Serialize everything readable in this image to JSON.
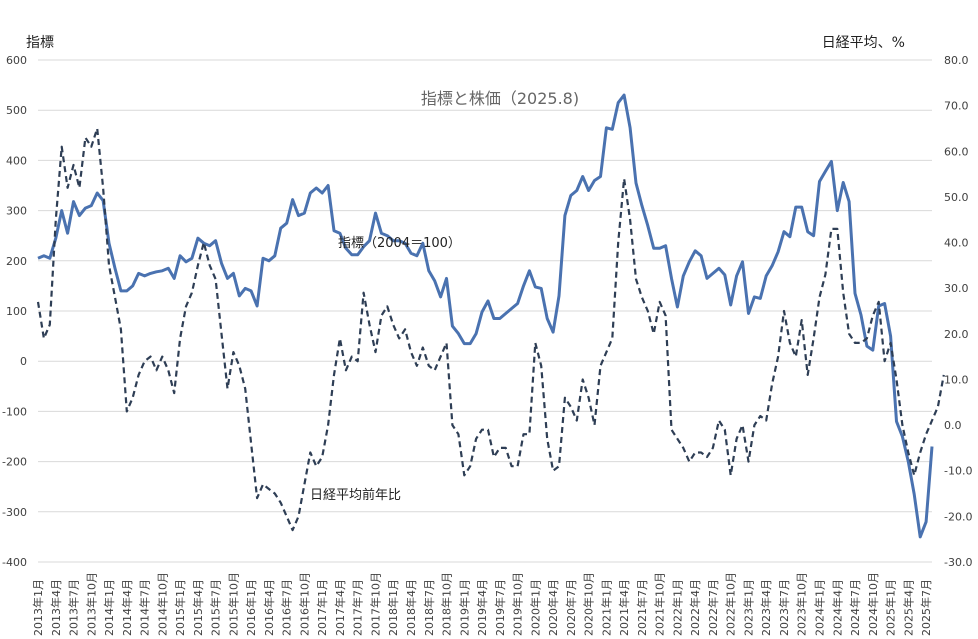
{
  "chart_data": {
    "type": "line",
    "title": "指標と株価（2025.8)",
    "ylabel": "指標",
    "y2label": "日経平均、%",
    "ylim": [
      -400,
      600
    ],
    "y2lim": [
      -30,
      80
    ],
    "yticks": [
      "600",
      "500",
      "400",
      "300",
      "200",
      "100",
      "0",
      "-100",
      "-200",
      "-300",
      "-400"
    ],
    "y2ticks": [
      "80.0",
      "70.0",
      "60.0",
      "50.0",
      "40.0",
      "30.0",
      "20.0",
      "10.0",
      "0.0",
      "-10.0",
      "-20.0",
      "-30.0"
    ],
    "xticks": [
      "2013年1月",
      "2013年4月",
      "2013年7月",
      "2013年10月",
      "2014年1月",
      "2014年4月",
      "2014年7月",
      "2014年10月",
      "2015年1月",
      "2015年4月",
      "2015年7月",
      "2015年10月",
      "2016年1月",
      "2016年4月",
      "2016年7月",
      "2016年10月",
      "2017年1月",
      "2017年4月",
      "2017年7月",
      "2017年10月",
      "2018年1月",
      "2018年4月",
      "2018年7月",
      "2018年10月",
      "2019年1月",
      "2019年4月",
      "2019年7月",
      "2019年10月",
      "2020年1月",
      "2020年4月",
      "2020年7月",
      "2020年10月",
      "2021年1月",
      "2021年4月",
      "2021年7月",
      "2021年10月",
      "2022年1月",
      "2022年4月",
      "2022年7月",
      "2022年10月",
      "2023年1月",
      "2023年4月",
      "2023年7月",
      "2023年10月",
      "2024年1月",
      "2024年4月",
      "2024年7月",
      "2024年10月",
      "2025年1月",
      "2025年4月",
      "2025年7月"
    ],
    "grid": true,
    "legend": "none",
    "series": [
      {
        "name": "指標（2004＝100）",
        "axis": "left",
        "color": "#4a72b0",
        "style": "solid",
        "values": [
          205,
          210,
          205,
          245,
          300,
          255,
          318,
          290,
          305,
          310,
          335,
          320,
          235,
          185,
          140,
          140,
          150,
          175,
          170,
          175,
          178,
          180,
          185,
          165,
          210,
          198,
          205,
          245,
          235,
          230,
          240,
          195,
          165,
          175,
          130,
          145,
          140,
          110,
          205,
          200,
          210,
          265,
          275,
          322,
          290,
          295,
          335,
          345,
          335,
          350,
          260,
          255,
          225,
          212,
          212,
          228,
          240,
          295,
          255,
          250,
          240,
          240,
          235,
          215,
          210,
          235,
          180,
          160,
          128,
          165,
          70,
          55,
          35,
          35,
          55,
          98,
          120,
          85,
          85,
          95,
          105,
          115,
          150,
          180,
          148,
          145,
          85,
          58,
          130,
          290,
          330,
          340,
          368,
          340,
          360,
          368,
          465,
          462,
          515,
          530,
          465,
          355,
          310,
          270,
          225,
          225,
          230,
          165,
          108,
          170,
          198,
          220,
          210,
          165,
          175,
          185,
          172,
          112,
          170,
          198,
          95,
          128,
          125,
          170,
          190,
          218,
          258,
          248,
          307,
          307,
          258,
          250,
          358,
          378,
          398,
          300,
          356,
          318,
          135,
          92,
          30,
          22,
          110,
          115,
          50,
          -120,
          -150,
          -200,
          -265,
          -350,
          -320,
          -170
        ]
      },
      {
        "name": "日経平均前年比",
        "axis": "right",
        "color": "#2e3e55",
        "style": "dashed",
        "values": [
          27.0,
          19.0,
          22.0,
          45.0,
          61.0,
          52.0,
          57.0,
          52.0,
          63.0,
          61.0,
          65.0,
          52.0,
          35.0,
          28.0,
          21.0,
          3.0,
          6.0,
          11.0,
          14.0,
          15.0,
          12.0,
          15.0,
          12.0,
          7.0,
          19.0,
          26.0,
          29.0,
          35.0,
          40.0,
          35.0,
          32.0,
          20.0,
          8.0,
          16.0,
          13.0,
          8.0,
          -4.0,
          -16.0,
          -13.0,
          -14.0,
          -15.0,
          -17.0,
          -20.0,
          -23.0,
          -20.0,
          -13.0,
          -6.0,
          -9.0,
          -7.0,
          0.0,
          11.0,
          19.0,
          12.0,
          15.0,
          14.0,
          29.0,
          22.0,
          16.0,
          24.0,
          26.0,
          22.0,
          19.0,
          21.0,
          16.0,
          13.0,
          17.0,
          13.0,
          12.0,
          15.0,
          18.0,
          0.0,
          -2.0,
          -11.0,
          -9.0,
          -3.0,
          -1.0,
          -1.0,
          -7.0,
          -5.0,
          -5.0,
          -9.0,
          -9.0,
          -2.0,
          -2.0,
          18.0,
          13.0,
          -3.0,
          -10.0,
          -9.0,
          6.0,
          4.0,
          1.0,
          10.0,
          6.0,
          0.0,
          13.0,
          16.0,
          19.0,
          40.0,
          54.0,
          45.0,
          32.0,
          28.0,
          25.0,
          20.0,
          27.0,
          24.0,
          -1.0,
          -3.0,
          -5.0,
          -8.0,
          -6.0,
          -6.0,
          -7.0,
          -5.0,
          1.0,
          -1.0,
          -11.0,
          -3.0,
          0.0,
          -8.0,
          0.0,
          2.0,
          1.0,
          9.0,
          15.0,
          25.0,
          18.0,
          15.0,
          23.0,
          11.0,
          19.0,
          28.0,
          33.0,
          43.0,
          43.0,
          29.0,
          20.0,
          18.0,
          18.0,
          19.0,
          24.0,
          27.0,
          14.0,
          18.0,
          10.0,
          0.0,
          -6.0,
          -11.0,
          -6.0,
          -2.0,
          1.0,
          4.0,
          11.0
        ]
      }
    ],
    "annotations": [
      {
        "text": "指標（2004＝100）",
        "series": 0
      },
      {
        "text": "日経平均前年比",
        "series": 1
      }
    ]
  }
}
